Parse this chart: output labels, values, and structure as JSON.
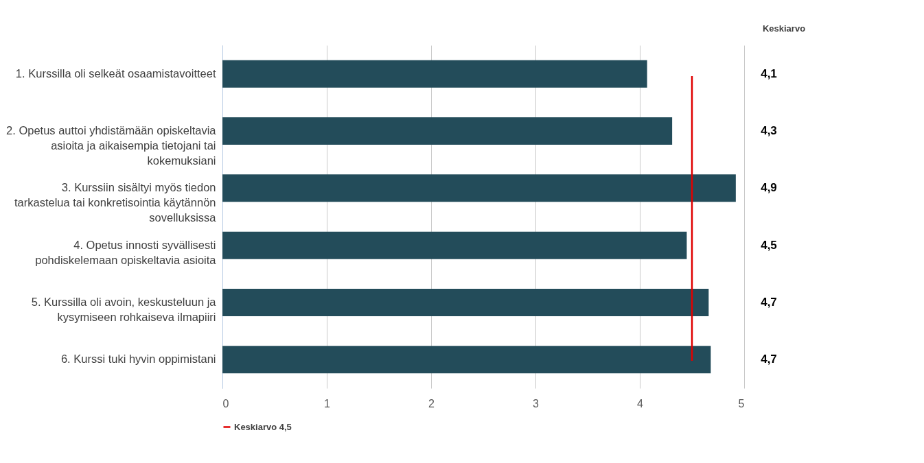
{
  "chart_data": {
    "type": "bar",
    "orientation": "horizontal",
    "categories": [
      "1. Kurssilla oli selkeät osaamistavoitteet",
      "2. Opetus auttoi yhdistämään opiskeltavia asioita ja aikaisempia tietojani tai kokemuksiani",
      "3. Kurssiin sisältyi myös tiedon tarkastelua tai konkretisointia käytännön sovelluksissa",
      "4. Opetus innosti syvällisesti pohdiskelemaan opiskeltavia asioita",
      "5. Kurssilla oli avoin, keskusteluun ja kysymiseen rohkaiseva ilmapiiri",
      "6. Kurssi tuki hyvin oppimistani"
    ],
    "values": [
      4.07,
      4.31,
      4.92,
      4.45,
      4.66,
      4.68
    ],
    "value_labels": [
      "4,1",
      "4,3",
      "4,9",
      "4,5",
      "4,7",
      "4,7"
    ],
    "color": "#234c5a",
    "xlim": [
      0,
      5
    ],
    "xticks": [
      0,
      1,
      2,
      3,
      4,
      5
    ],
    "grid": "x",
    "ref_lines": [
      {
        "axis": "x",
        "value": 4.5,
        "label": "Keskiarvo 4,5",
        "color": "#e00000"
      }
    ],
    "annotations": [
      "Keskiarvo"
    ],
    "legend": "bottom"
  }
}
